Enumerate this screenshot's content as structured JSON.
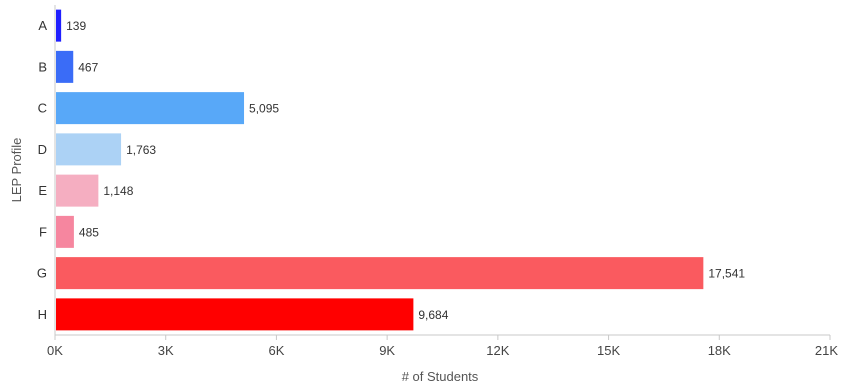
{
  "chart_data": {
    "type": "bar",
    "orientation": "horizontal",
    "categories": [
      "A",
      "B",
      "C",
      "D",
      "E",
      "F",
      "G",
      "H"
    ],
    "values": [
      139,
      467,
      5095,
      1763,
      1148,
      485,
      17541,
      9684
    ],
    "value_labels": [
      "139",
      "467",
      "5,095",
      "1,763",
      "1,148",
      "485",
      "17,541",
      "9,684"
    ],
    "colors": [
      "#1f1fff",
      "#3a6cf7",
      "#58a8f8",
      "#acd2f5",
      "#f5aec1",
      "#f6869f",
      "#fa5a5f",
      "#ff0000"
    ],
    "xlabel": "# of Students",
    "ylabel": "LEP Profile",
    "xlim": [
      0,
      21000
    ],
    "xticks": [
      0,
      3000,
      6000,
      9000,
      12000,
      15000,
      18000,
      21000
    ],
    "xtick_labels": [
      "0K",
      "3K",
      "6K",
      "9K",
      "12K",
      "15K",
      "18K",
      "21K"
    ],
    "grid": false,
    "legend": "none"
  }
}
